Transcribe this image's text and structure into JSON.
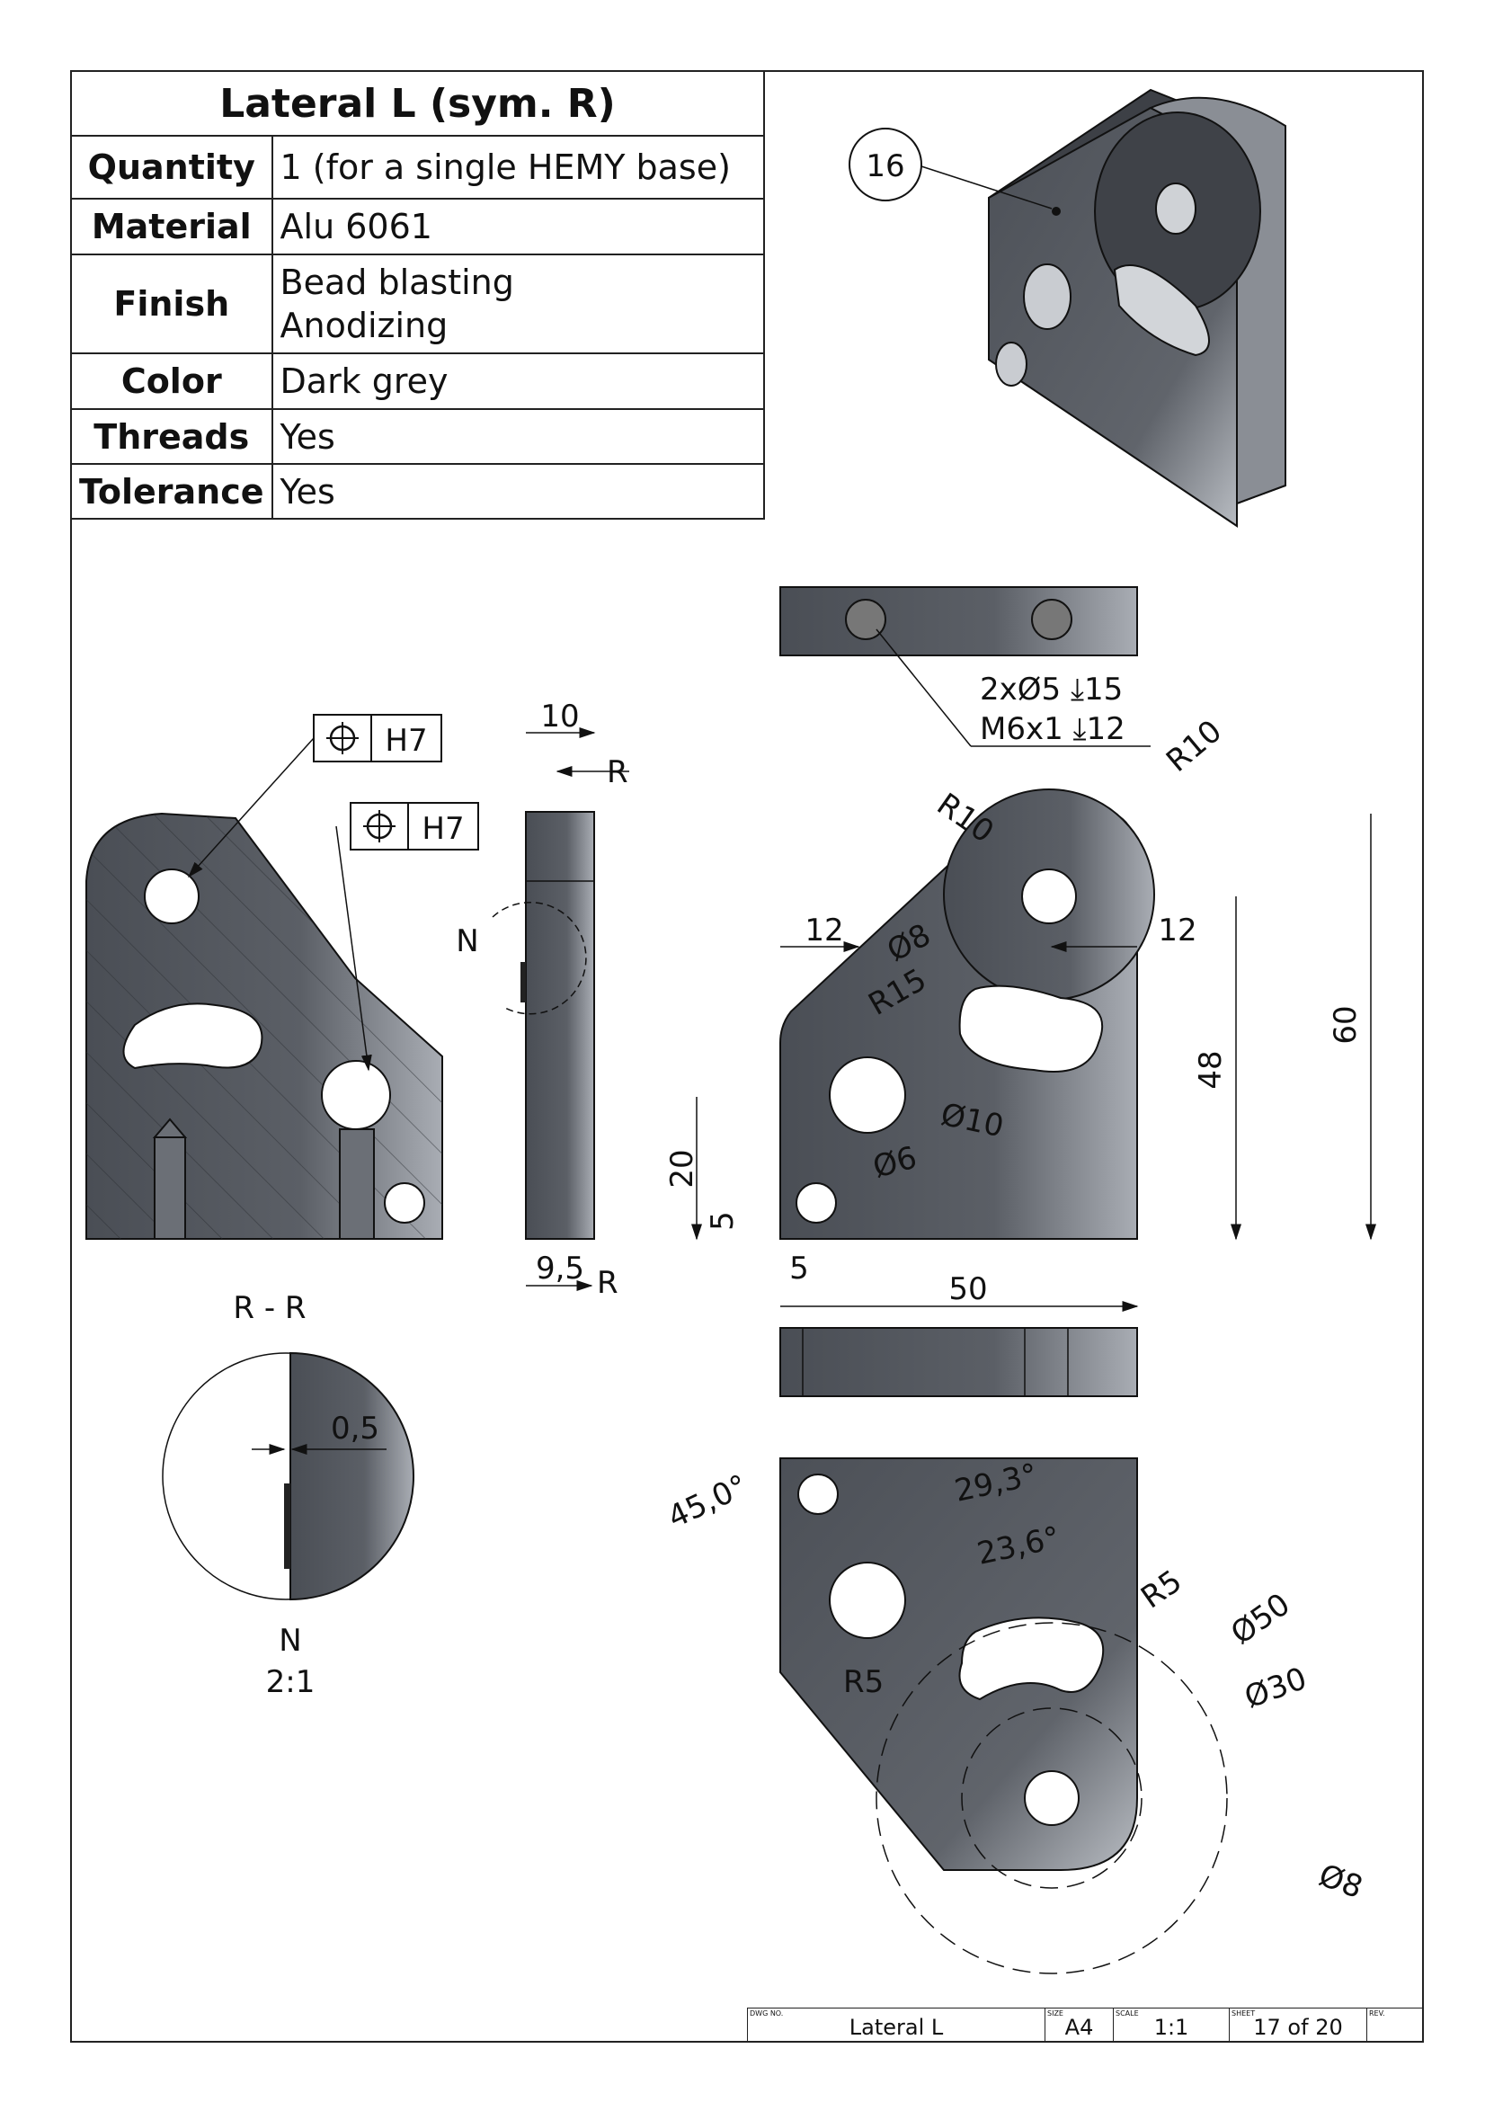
{
  "spec": {
    "title": "Lateral L (sym. R)",
    "rows": [
      {
        "key": "Quantity",
        "value": "1 (for a single HEMY base)"
      },
      {
        "key": "Material",
        "value": "Alu 6061"
      },
      {
        "key": "Finish",
        "value": "Bead blasting\nAnodizing"
      },
      {
        "key": "Color",
        "value": "Dark grey"
      },
      {
        "key": "Threads",
        "value": "Yes"
      },
      {
        "key": "Tolerance",
        "value": "Yes"
      }
    ]
  },
  "balloon": "16",
  "fcf": [
    {
      "tol": "H7"
    },
    {
      "tol": "H7"
    }
  ],
  "labels": {
    "section": "R - R",
    "section_mark": "R",
    "detail_name": "N",
    "detail_scale": "2:1",
    "detail_dim": "0,5"
  },
  "dims": {
    "side_w": "10",
    "side_b": "9,5",
    "callout1": "2xØ5 ⤓15",
    "callout2": "M6x1 ⤓12",
    "r10a": "R10",
    "r10b": "R10",
    "d12a": "12",
    "d12b": "12",
    "d8": "Ø8",
    "r15": "R15",
    "d60": "60",
    "d48": "48",
    "d10": "Ø10",
    "d6": "Ø6",
    "d20": "20",
    "d5v": "5",
    "d5h": "5",
    "d50": "50",
    "a45": "45,0°",
    "a293": "29,3°",
    "a236": "23,6°",
    "r5a": "R5",
    "r5b": "R5",
    "dd50": "Ø50",
    "dd30": "Ø30",
    "dd8": "Ø8"
  },
  "title_block": {
    "dwg_label": "DWG NO.",
    "dwg": "Lateral L",
    "size_label": "SIZE",
    "size": "A4",
    "scale_label": "SCALE",
    "scale": "1:1",
    "sheet_label": "SHEET",
    "sheet": "17 of 20",
    "rev_label": "REV."
  },
  "colors": {
    "part": "#50545b",
    "part_light": "#a9adb4",
    "line": "#111111"
  }
}
